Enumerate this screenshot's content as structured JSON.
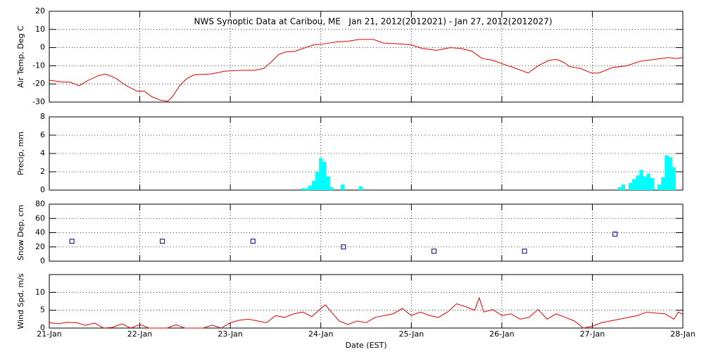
{
  "chart_data": [
    {
      "type": "line",
      "title": "NWS Synoptic Data at Caribou, ME   Jan 21, 2012(2012021) - Jan 27, 2012(2012027)",
      "ylabel": "Air Temp, Deg C",
      "color": "#dd0000",
      "x": [
        21.0,
        21.16,
        21.23,
        21.33,
        21.43,
        21.54,
        21.62,
        21.74,
        21.82,
        21.89,
        21.97,
        22.05,
        22.13,
        22.23,
        22.31,
        22.36,
        22.44,
        22.52,
        22.6,
        22.79,
        22.94,
        23.1,
        23.26,
        23.37,
        23.45,
        23.53,
        23.6,
        23.72,
        23.8,
        23.92,
        24.03,
        24.15,
        24.3,
        24.42,
        24.58,
        24.69,
        24.89,
        25.0,
        25.12,
        25.28,
        25.43,
        25.55,
        25.67,
        25.78,
        25.9,
        26.01,
        26.13,
        26.29,
        26.4,
        26.52,
        26.6,
        26.68,
        26.75,
        26.87,
        26.99,
        27.07,
        27.22,
        27.38,
        27.53,
        27.69,
        27.84,
        27.92,
        28.0
      ],
      "values": [
        -18,
        -19,
        -19,
        -21,
        -18,
        -15.5,
        -14.5,
        -17,
        -20,
        -22,
        -24,
        -24,
        -27,
        -29,
        -29.5,
        -27,
        -21,
        -17,
        -15,
        -14.5,
        -13,
        -12.5,
        -12.5,
        -11.5,
        -8,
        -4,
        -2.5,
        -2,
        -0.5,
        1.5,
        2,
        3,
        3.5,
        4.5,
        4.5,
        2.5,
        2,
        1.5,
        -0.5,
        -1.5,
        0,
        -0.5,
        -2,
        -6,
        -7,
        -9,
        -11,
        -14,
        -10,
        -7,
        -6.5,
        -8,
        -10.5,
        -11.5,
        -14,
        -14,
        -11,
        -10,
        -7.5,
        -6.5,
        -5.5,
        -6,
        -5.5
      ],
      "ylim": [
        -30,
        20
      ],
      "yticks": [
        -30,
        -20,
        -10,
        0,
        10,
        20
      ],
      "grid": true
    },
    {
      "type": "bar",
      "ylabel": "Precip, mm",
      "color": "#00ffff",
      "x": [
        23.78,
        23.82,
        23.86,
        23.9,
        23.94,
        23.98,
        24.02,
        24.06,
        24.1,
        24.22,
        24.42,
        27.28,
        27.32,
        27.4,
        27.44,
        27.48,
        27.52,
        27.56,
        27.6,
        27.64,
        27.72,
        27.76,
        27.8,
        27.84,
        27.88
      ],
      "values": [
        0.2,
        0.2,
        0.5,
        1.0,
        2.0,
        3.5,
        3.1,
        1.5,
        0.3,
        0.6,
        0.4,
        0.3,
        0.6,
        0.8,
        1.2,
        1.6,
        2.2,
        1.5,
        1.8,
        1.3,
        0.6,
        1.4,
        3.8,
        3.6,
        2.5
      ],
      "ylim": [
        0,
        8
      ],
      "yticks": [
        0,
        2,
        4,
        6,
        8
      ],
      "grid": true
    },
    {
      "type": "scatter",
      "ylabel": "Snow Dep, cm",
      "color": "#000080",
      "x": [
        21.25,
        22.25,
        23.25,
        24.25,
        25.25,
        26.25,
        27.25
      ],
      "values": [
        28,
        28,
        28,
        20,
        14,
        14,
        38
      ],
      "ylim": [
        0,
        80
      ],
      "yticks": [
        0,
        20,
        40,
        60,
        80
      ],
      "grid": true
    },
    {
      "type": "line",
      "ylabel": "Wind Spd, m/s",
      "xlabel": "Date (EST)",
      "color": "#dd0000",
      "x": [
        21.0,
        21.1,
        21.2,
        21.3,
        21.4,
        21.5,
        21.6,
        21.7,
        21.8,
        21.9,
        22.0,
        22.1,
        22.2,
        22.3,
        22.4,
        22.5,
        22.6,
        22.7,
        22.8,
        22.9,
        23.0,
        23.1,
        23.2,
        23.3,
        23.4,
        23.5,
        23.6,
        23.7,
        23.8,
        23.9,
        24.0,
        24.05,
        24.1,
        24.2,
        24.3,
        24.4,
        24.5,
        24.6,
        24.7,
        24.8,
        24.9,
        25.0,
        25.1,
        25.2,
        25.3,
        25.4,
        25.5,
        25.6,
        25.7,
        25.75,
        25.8,
        25.9,
        26.0,
        26.1,
        26.2,
        26.3,
        26.4,
        26.5,
        26.6,
        26.7,
        26.8,
        26.9,
        27.0,
        27.1,
        27.2,
        27.3,
        27.4,
        27.5,
        27.6,
        27.7,
        27.8,
        27.9,
        27.95,
        28.0
      ],
      "values": [
        1.5,
        1.2,
        1.6,
        1.5,
        0.8,
        1.4,
        0,
        0.2,
        1.2,
        0,
        1.0,
        0,
        0,
        0,
        0.9,
        0,
        0,
        0,
        0.8,
        0,
        1.5,
        2.2,
        2.5,
        2.0,
        1.5,
        3.5,
        3.0,
        4.0,
        4.5,
        3.2,
        5.5,
        6.5,
        5.0,
        2.0,
        1.0,
        2.0,
        1.5,
        3.0,
        3.5,
        4.0,
        5.5,
        3.5,
        4.5,
        3.5,
        3.0,
        4.5,
        6.8,
        6.0,
        5.0,
        8.5,
        4.5,
        5.2,
        3.5,
        4.0,
        2.5,
        3.0,
        5.2,
        2.5,
        4.0,
        3.0,
        2.0,
        0,
        0.5,
        1.5,
        2.0,
        2.5,
        3.0,
        3.5,
        4.5,
        4.2,
        4.0,
        2.5,
        4.5,
        3.8
      ],
      "ylim": [
        0,
        15
      ],
      "yticks": [
        0,
        5,
        10
      ],
      "grid": true,
      "xlim": [
        21,
        28
      ],
      "xticks": [
        {
          "value": 21,
          "label": "21-Jan"
        },
        {
          "value": 22,
          "label": "22-Jan"
        },
        {
          "value": 23,
          "label": "23-Jan"
        },
        {
          "value": 24,
          "label": "24-Jan"
        },
        {
          "value": 25,
          "label": "25-Jan"
        },
        {
          "value": 26,
          "label": "26-Jan"
        },
        {
          "value": 27,
          "label": "27-Jan"
        },
        {
          "value": 28,
          "label": "28-Jan"
        }
      ]
    }
  ]
}
